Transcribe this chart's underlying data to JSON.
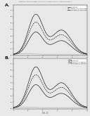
{
  "title_text": "Patent Application Publication   May 24, 2012  Sheet 11 of 121   US 2012/0129196 A1",
  "footer_text": "FIG. 11",
  "panel_A_label": "A.",
  "panel_B_label": "B.",
  "legend_A": [
    {
      "label": "Cry1Ab(Cry)"
    },
    {
      "label": "Cry1Ab(AAA) + Granzyme"
    },
    {
      "label": "Cry1Ab(BBA) + Granzyme"
    }
  ],
  "legend_B": [
    {
      "label": "Cry1Ab(Cry)"
    },
    {
      "label": "Cry1Ab(AAA) + Salt soln"
    },
    {
      "label": "Cry1Ab(BBA) + Salt soln"
    }
  ],
  "bg_color": "#e8e8e8",
  "plot_bg": "#e8e8e8",
  "curve_color": "#111111",
  "flat_curve_color": "#555555"
}
